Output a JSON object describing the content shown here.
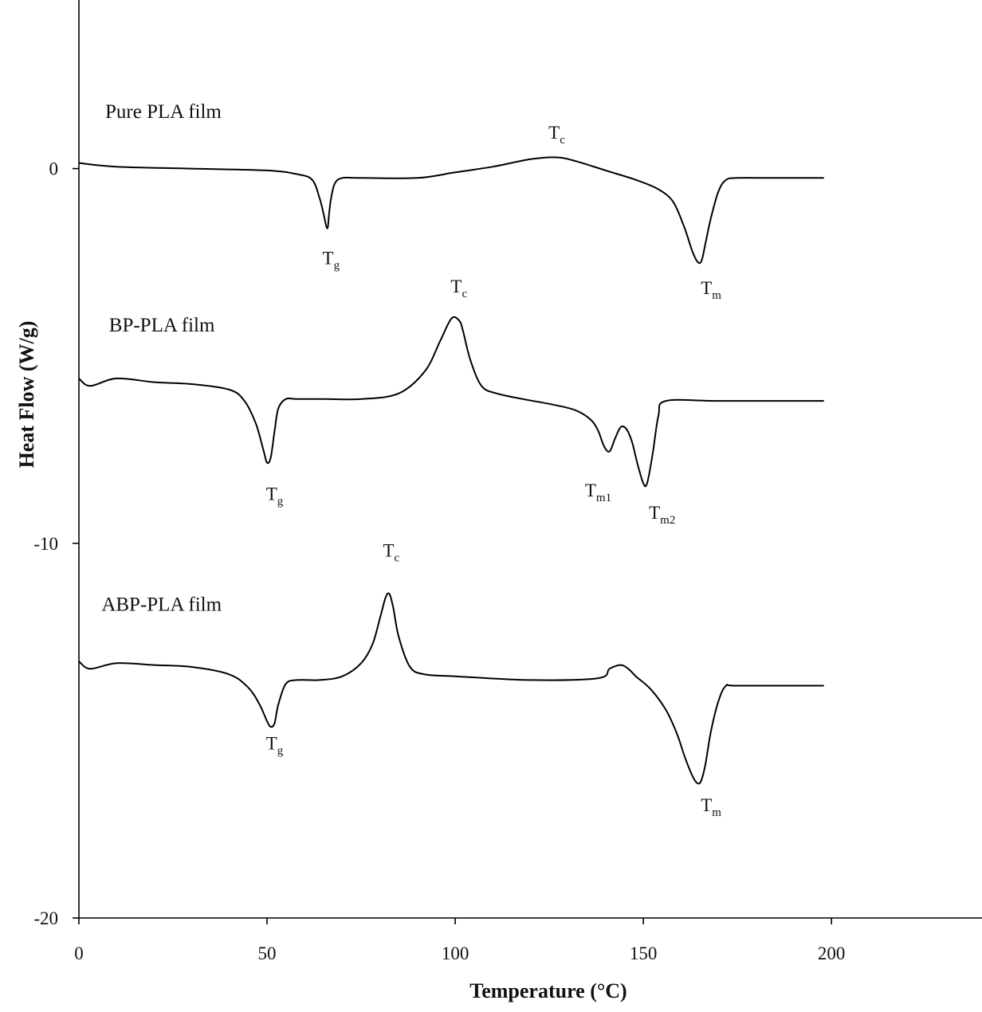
{
  "chart_data": {
    "type": "line",
    "xlabel": "Temperature (°C)",
    "ylabel": "Heat Flow (W/g)",
    "xlim": [
      0,
      240
    ],
    "ylim": [
      -20,
      4.5
    ],
    "xticks": [
      0,
      50,
      100,
      150,
      200
    ],
    "yticks": [
      0,
      -10,
      -20
    ],
    "grid": false,
    "series": [
      {
        "name": "Pure PLA film",
        "x": [
          0,
          10,
          30,
          50,
          58,
          62,
          64,
          65,
          66,
          66.5,
          67,
          68,
          70,
          75,
          90,
          100,
          110,
          120,
          127,
          132,
          140,
          148,
          154,
          158,
          161,
          163,
          164.5,
          165.5,
          166.5,
          168,
          170,
          172,
          175,
          185,
          198
        ],
        "y": [
          0.15,
          0.05,
          0.0,
          -0.05,
          -0.15,
          -0.3,
          -0.8,
          -1.2,
          -1.6,
          -1.2,
          -0.8,
          -0.4,
          -0.25,
          -0.25,
          -0.25,
          -0.1,
          0.05,
          0.25,
          0.3,
          0.2,
          -0.05,
          -0.3,
          -0.55,
          -0.9,
          -1.6,
          -2.2,
          -2.5,
          -2.45,
          -2.0,
          -1.3,
          -0.6,
          -0.3,
          -0.25,
          -0.25,
          -0.25
        ]
      },
      {
        "name": "BP-PLA film",
        "x": [
          0,
          3,
          10,
          20,
          30,
          40,
          44,
          47,
          49,
          50,
          51,
          52,
          53,
          55,
          58,
          65,
          75,
          85,
          92,
          96,
          99,
          101,
          102,
          104,
          107,
          111,
          118,
          126,
          132,
          136,
          138,
          139.5,
          141,
          142.5,
          144,
          145.5,
          147,
          148.5,
          150,
          151,
          152.5,
          154,
          156,
          170,
          198
        ],
        "y": [
          -5.6,
          -5.8,
          -5.6,
          -5.7,
          -5.75,
          -5.9,
          -6.2,
          -6.8,
          -7.5,
          -7.85,
          -7.7,
          -7.0,
          -6.4,
          -6.15,
          -6.15,
          -6.15,
          -6.15,
          -6.0,
          -5.4,
          -4.6,
          -4.0,
          -4.05,
          -4.3,
          -5.1,
          -5.8,
          -6.0,
          -6.15,
          -6.3,
          -6.45,
          -6.7,
          -7.0,
          -7.4,
          -7.55,
          -7.2,
          -6.9,
          -6.95,
          -7.3,
          -7.9,
          -8.4,
          -8.4,
          -7.6,
          -6.6,
          -6.2,
          -6.2,
          -6.2
        ]
      },
      {
        "name": "ABP-PLA film",
        "x": [
          0,
          3,
          10,
          20,
          30,
          40,
          45,
          48,
          50,
          51,
          52,
          53,
          55,
          58,
          64,
          70,
          75,
          78,
          80,
          81.5,
          82.5,
          83.5,
          85,
          88,
          92,
          100,
          120,
          138,
          141,
          144,
          146,
          148,
          152,
          156,
          159,
          161,
          163,
          164.3,
          165.3,
          166.5,
          168,
          170,
          172,
          175,
          198
        ],
        "y": [
          -13.15,
          -13.35,
          -13.2,
          -13.25,
          -13.3,
          -13.5,
          -13.85,
          -14.3,
          -14.75,
          -14.9,
          -14.8,
          -14.3,
          -13.75,
          -13.65,
          -13.65,
          -13.55,
          -13.2,
          -12.7,
          -12.0,
          -11.45,
          -11.35,
          -11.7,
          -12.5,
          -13.3,
          -13.5,
          -13.55,
          -13.65,
          -13.6,
          -13.35,
          -13.25,
          -13.35,
          -13.55,
          -13.9,
          -14.45,
          -15.1,
          -15.7,
          -16.2,
          -16.4,
          -16.35,
          -15.9,
          -15.0,
          -14.2,
          -13.8,
          -13.8,
          -13.8
        ]
      }
    ],
    "annotations": [
      {
        "base": "T",
        "sub": "c",
        "x": 127,
        "y": 0.8
      },
      {
        "base": "T",
        "sub": "g",
        "x": 67,
        "y": -2.55
      },
      {
        "base": "T",
        "sub": "m",
        "x": 168,
        "y": -3.35
      },
      {
        "base": "T",
        "sub": "c",
        "x": 101,
        "y": -3.3
      },
      {
        "base": "T",
        "sub": "g",
        "x": 52,
        "y": -8.85
      },
      {
        "base": "T",
        "sub": "m1",
        "x": 138,
        "y": -8.75
      },
      {
        "base": "T",
        "sub": "m2",
        "x": 155,
        "y": -9.35
      },
      {
        "base": "T",
        "sub": "c",
        "x": 83,
        "y": -10.35
      },
      {
        "base": "T",
        "sub": "g",
        "x": 52,
        "y": -15.5
      },
      {
        "base": "T",
        "sub": "m",
        "x": 168,
        "y": -17.15
      }
    ],
    "series_labels": [
      {
        "text": "Pure PLA film",
        "x": 7,
        "y": 1.35
      },
      {
        "text": "BP-PLA film",
        "x": 8,
        "y": -4.35
      },
      {
        "text": "ABP-PLA film",
        "x": 6,
        "y": -11.8
      }
    ]
  }
}
